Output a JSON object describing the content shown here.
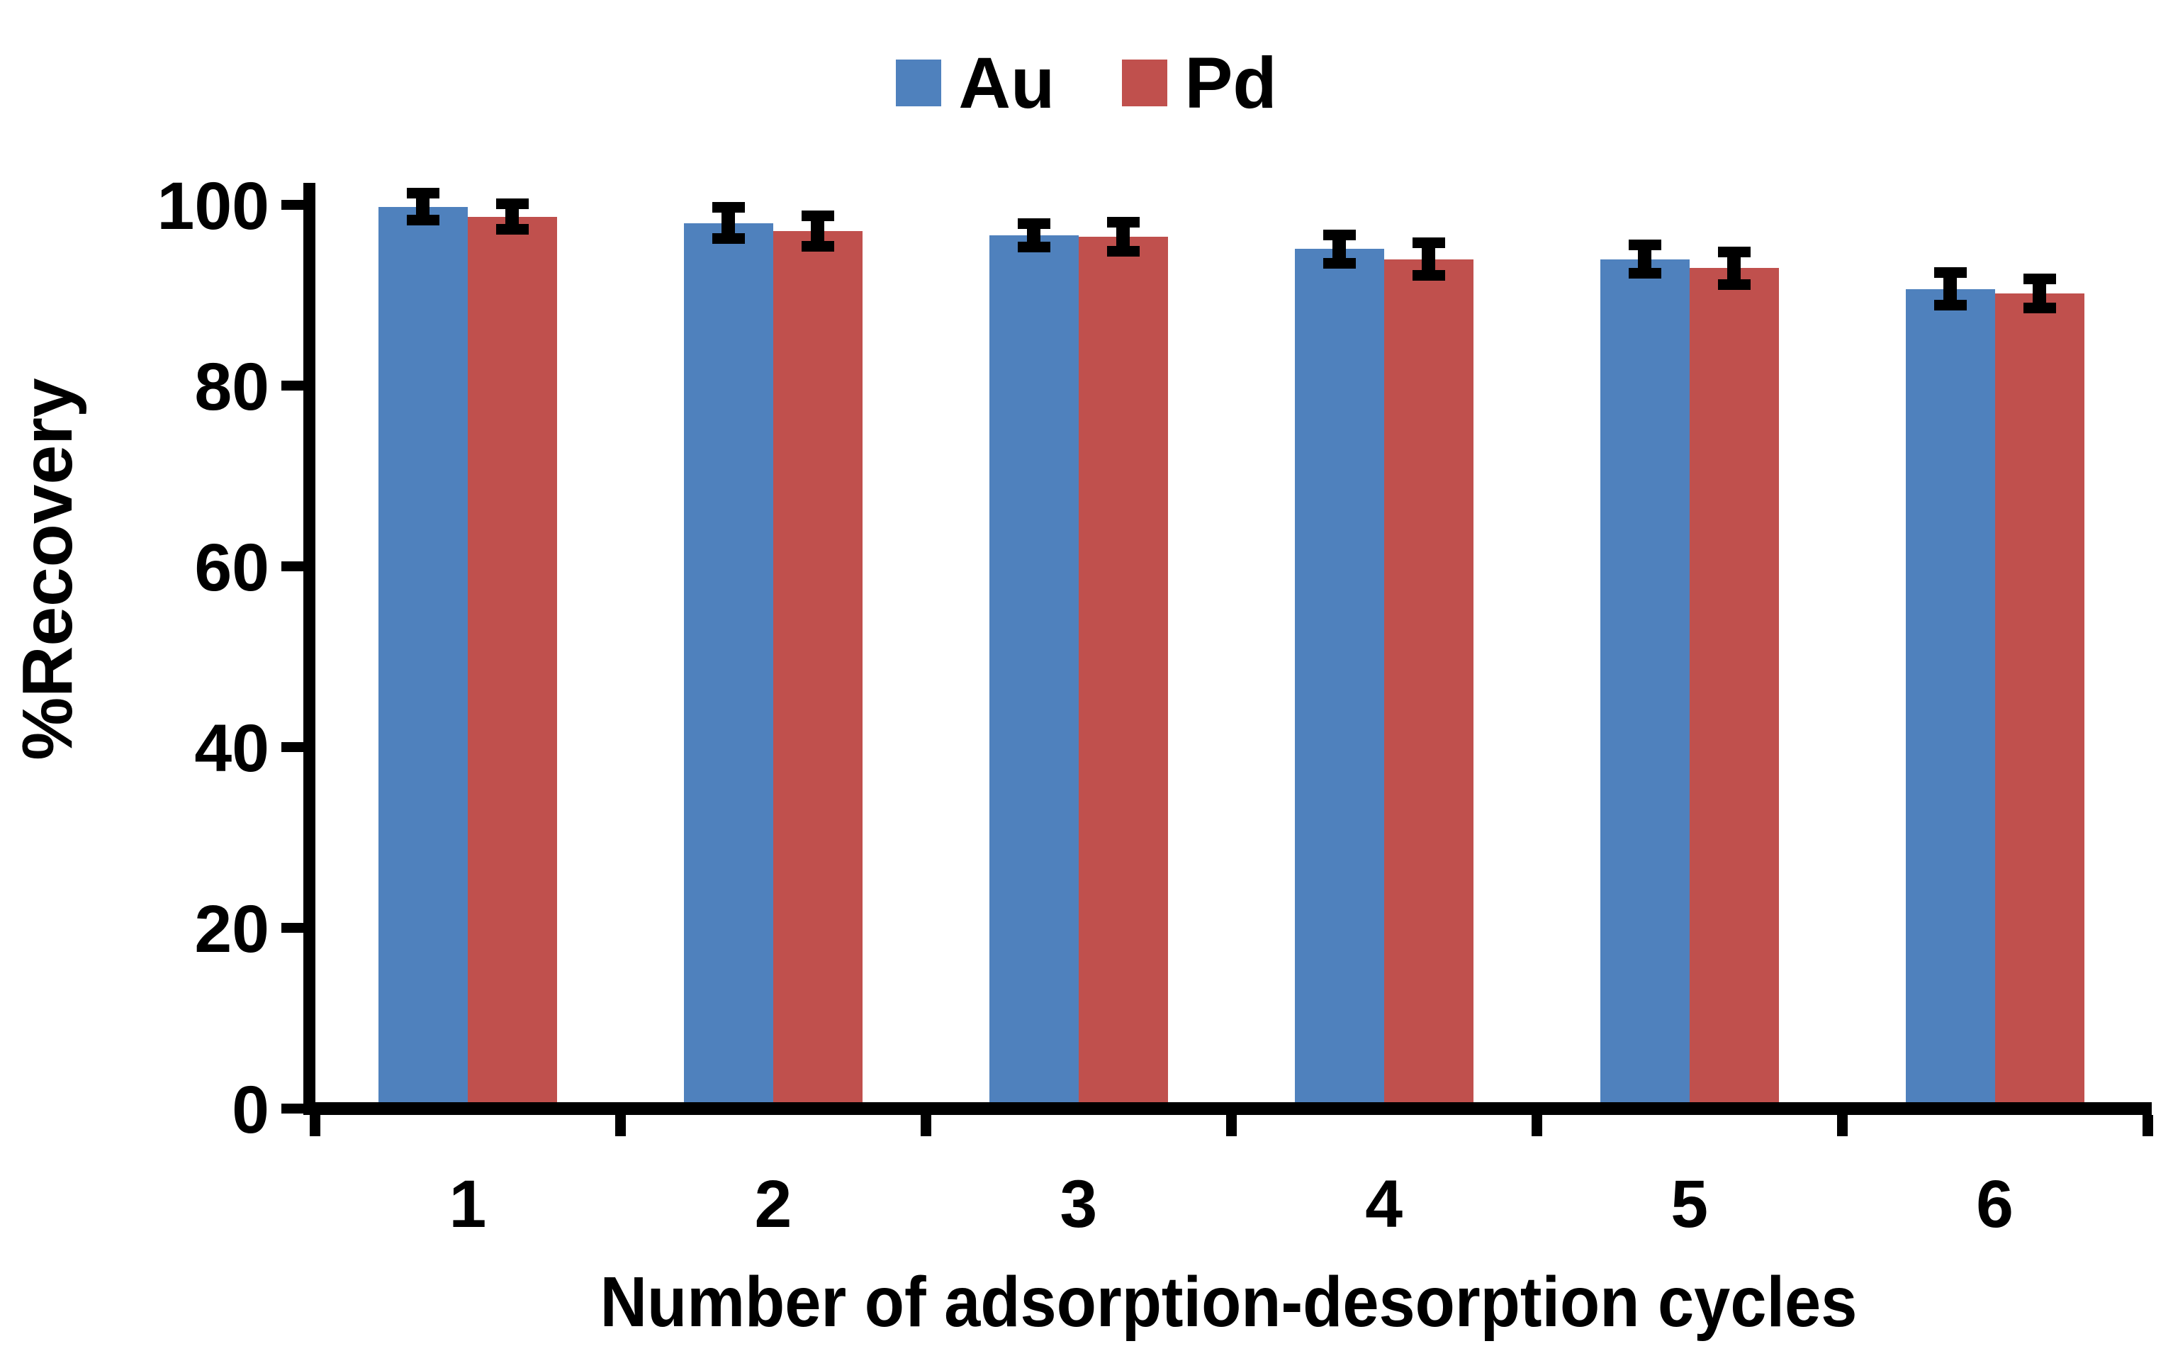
{
  "chart_data": {
    "type": "bar",
    "title": "",
    "categories": [
      "1",
      "2",
      "3",
      "4",
      "5",
      "6"
    ],
    "series": [
      {
        "name": "Au",
        "color": "#4F81BD",
        "values": [
          99.8,
          98.0,
          96.6,
          95.1,
          94.0,
          90.7
        ],
        "errors": [
          1.5,
          1.7,
          1.3,
          1.6,
          1.6,
          1.8
        ]
      },
      {
        "name": "Pd",
        "color": "#C0504D",
        "values": [
          98.7,
          97.1,
          96.5,
          94.0,
          93.0,
          90.2
        ],
        "errors": [
          1.4,
          1.7,
          1.6,
          1.8,
          1.8,
          1.6
        ]
      }
    ],
    "xlabel": "Number of adsorption-desorption cycles",
    "ylabel": "%Recovery",
    "ylim": [
      0,
      100
    ],
    "yticks": [
      0,
      20,
      40,
      60,
      80,
      100
    ],
    "grid": false,
    "legend_position": "top-center",
    "axis_color": "#000000",
    "error_bar_color": "#000000",
    "background": "#FFFFFF",
    "text_color": "#000000"
  }
}
